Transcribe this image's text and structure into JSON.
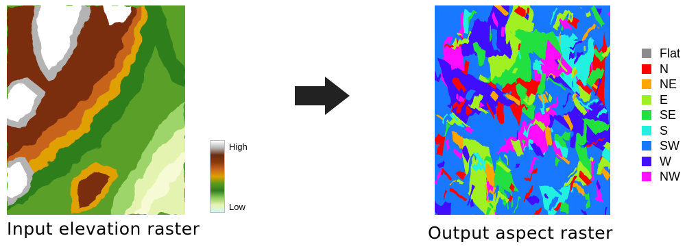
{
  "input_panel": {
    "caption": "Input elevation raster",
    "legend": {
      "high_label": "High",
      "low_label": "Low",
      "ramp_colors": [
        "#ffffff",
        "#b4b4b4",
        "#6b2a0f",
        "#8a3a0b",
        "#c8641e",
        "#e0a000",
        "#5a9a1a",
        "#2f7f1f",
        "#8fce5a",
        "#e8f5b0",
        "#d0f5f5"
      ]
    }
  },
  "arrow": {
    "icon": "right-arrow-icon",
    "color": "#222222"
  },
  "output_panel": {
    "caption": "Output aspect raster",
    "legend": [
      {
        "label": "Flat",
        "color": "#8c8c8c"
      },
      {
        "label": "N",
        "color": "#ff0000"
      },
      {
        "label": "NE",
        "color": "#ffa500"
      },
      {
        "label": "E",
        "color": "#a0f020"
      },
      {
        "label": "SE",
        "color": "#20e040"
      },
      {
        "label": "S",
        "color": "#20f0e0"
      },
      {
        "label": "SW",
        "color": "#1878ff"
      },
      {
        "label": "W",
        "color": "#4010ff"
      },
      {
        "label": "NW",
        "color": "#ff10ff"
      }
    ]
  }
}
